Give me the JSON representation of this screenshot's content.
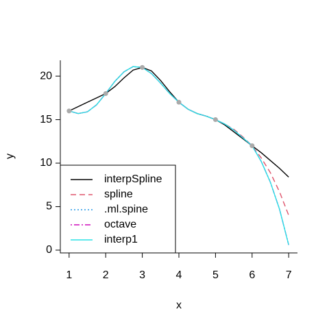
{
  "chart_data": {
    "type": "line",
    "x_label": "x",
    "y_label": "y",
    "x": [
      1,
      1.25,
      1.5,
      1.75,
      2,
      2.25,
      2.5,
      2.75,
      3,
      3.25,
      3.5,
      3.75,
      4,
      4.25,
      4.5,
      4.75,
      5,
      5.25,
      5.5,
      5.75,
      6,
      6.25,
      6.5,
      6.75,
      7
    ],
    "series": [
      {
        "name": "interpSpline",
        "color": "#000000",
        "linetype": "solid",
        "values": [
          16,
          16.5,
          17,
          17.5,
          18,
          18.8,
          19.8,
          20.7,
          21,
          20.6,
          19.5,
          18.2,
          17,
          16.2,
          15.7,
          15.4,
          15,
          14.4,
          13.6,
          12.8,
          12,
          11.2,
          10.3,
          9.4,
          8.4
        ]
      },
      {
        "name": "spline",
        "color": "#DF536B",
        "linetype": "dashed",
        "values": [
          16,
          15.7,
          15.9,
          16.7,
          18,
          19.4,
          20.5,
          21.1,
          21,
          20.3,
          19.2,
          18,
          17,
          16.2,
          15.7,
          15.4,
          15,
          14.5,
          13.9,
          13,
          12,
          10.6,
          8.9,
          6.7,
          4
        ]
      },
      {
        "name": ".ml.spine",
        "color": "#2297E6",
        "linetype": "dotted",
        "values": [
          16,
          15.7,
          15.9,
          16.7,
          18,
          19.4,
          20.5,
          21.1,
          21,
          20.3,
          19.2,
          18,
          17,
          16.2,
          15.7,
          15.4,
          15,
          14.5,
          13.8,
          12.9,
          12,
          10.2,
          7.8,
          4.7,
          0.6
        ]
      },
      {
        "name": "octave",
        "color": "#CD0BBC",
        "linetype": "dotdash",
        "values": [
          16,
          15.7,
          15.9,
          16.7,
          18,
          19.4,
          20.5,
          21.1,
          21,
          20.3,
          19.2,
          18,
          17,
          16.2,
          15.7,
          15.4,
          15,
          14.5,
          13.8,
          12.9,
          12,
          10.2,
          7.8,
          4.7,
          0.6
        ]
      },
      {
        "name": "interp1",
        "color": "#28E2E5",
        "linetype": "solid",
        "values": [
          16,
          15.7,
          15.9,
          16.7,
          18,
          19.4,
          20.5,
          21.1,
          21,
          20.3,
          19.2,
          18,
          17,
          16.2,
          15.7,
          15.4,
          15,
          14.5,
          13.8,
          12.9,
          12,
          10.2,
          7.8,
          4.7,
          0.6
        ]
      }
    ],
    "points": {
      "x": [
        1,
        2,
        3,
        4,
        5,
        6
      ],
      "y": [
        16,
        18,
        21,
        17,
        15,
        12
      ],
      "color": "#aaaaaa"
    },
    "xlim": [
      0.76,
      7.24
    ],
    "ylim": [
      -0.32,
      21.82
    ],
    "xticks": [
      1,
      2,
      3,
      4,
      5,
      6,
      7
    ],
    "yticks": [
      0,
      5,
      10,
      15,
      20
    ],
    "legend": "bottomleft"
  }
}
